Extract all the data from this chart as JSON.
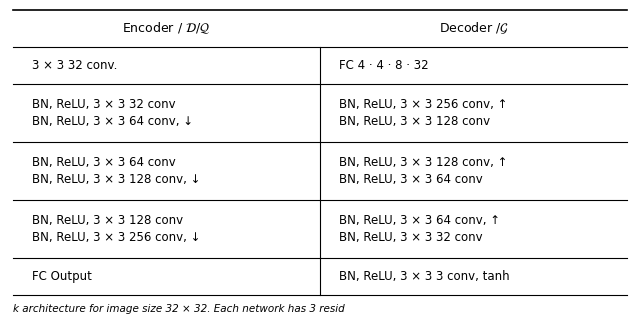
{
  "col_header_left": "Encoder / δ/Q",
  "col_header_right": "Decoder /ɡ",
  "header_left_text": "Encoder / $\\mathcal{D}$/$\\mathcal{Q}$",
  "header_right_text": "Decoder /$\\mathcal{G}$",
  "rows": [
    {
      "left": "3 × 3 32 conv.",
      "right": "FC 4 · 4 · 8 · 32"
    },
    {
      "left": "BN, ReLU, 3 × 3 32 conv\nBN, ReLU, 3 × 3 64 conv, ↓",
      "right": "BN, ReLU, 3 × 3 256 conv, ↑\nBN, ReLU, 3 × 3 128 conv"
    },
    {
      "left": "BN, ReLU, 3 × 3 64 conv\nBN, ReLU, 3 × 3 128 conv, ↓",
      "right": "BN, ReLU, 3 × 3 128 conv, ↑\nBN, ReLU, 3 × 3 64 conv"
    },
    {
      "left": "BN, ReLU, 3 × 3 128 conv\nBN, ReLU, 3 × 3 256 conv, ↓",
      "right": "BN, ReLU, 3 × 3 64 conv, ↑\nBN, ReLU, 3 × 3 32 conv"
    },
    {
      "left": "FC Output",
      "right": "BN, ReLU, 3 × 3 3 conv, tanh"
    }
  ],
  "bg_color": "#ffffff",
  "text_color": "#000000",
  "line_color": "#000000",
  "font_size": 8.5,
  "header_font_size": 9.0,
  "fig_width": 6.4,
  "fig_height": 3.17,
  "caption_text": "k architecture for image size 32 × 32. Each network has 3 resid"
}
